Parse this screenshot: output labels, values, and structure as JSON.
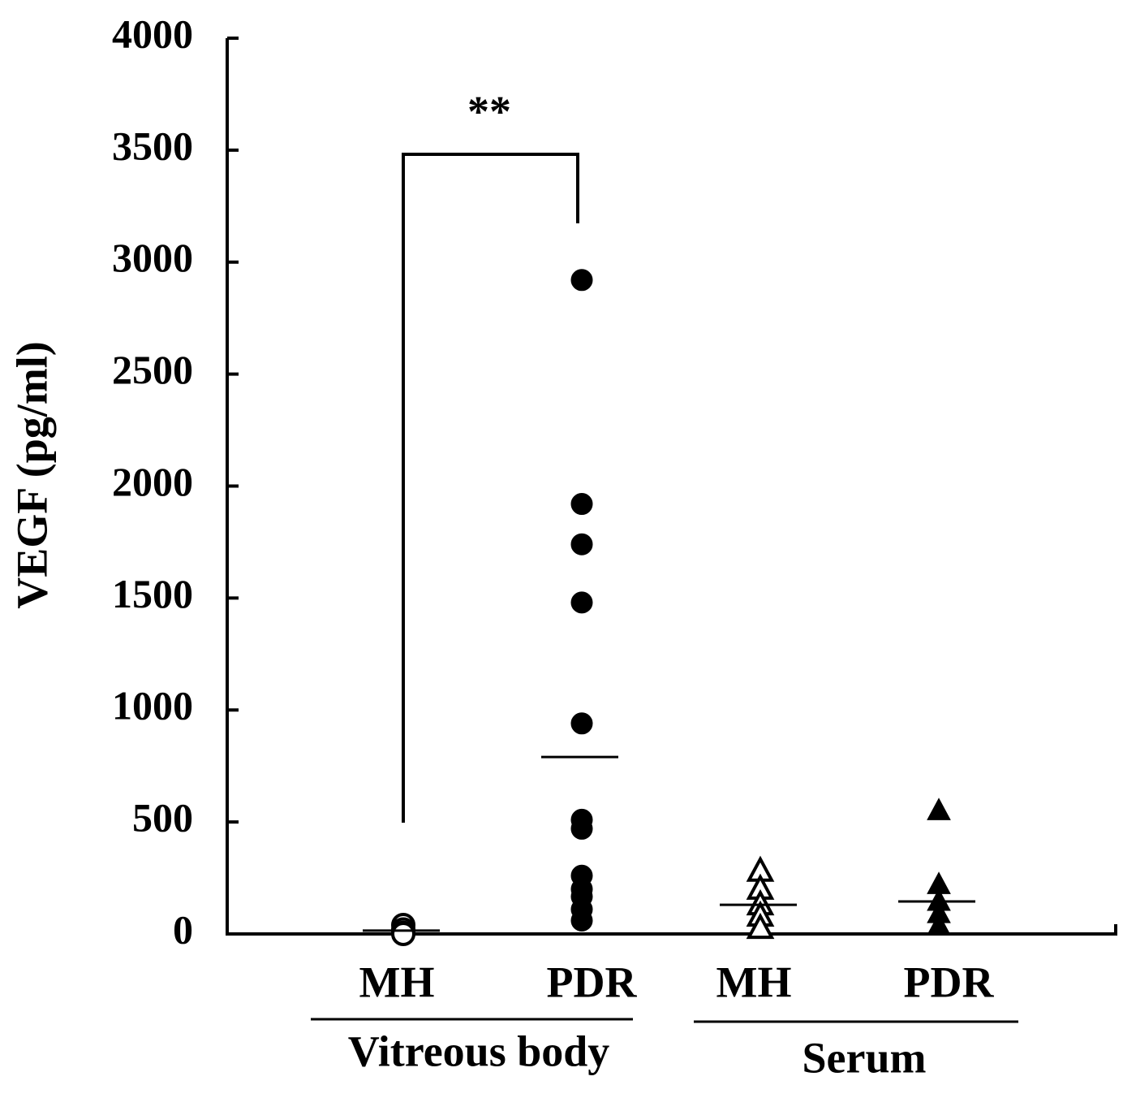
{
  "chart_data": {
    "type": "strip",
    "y_label": "VEGF (pg/ml)",
    "categories": [
      "MH",
      "PDR",
      "MH",
      "PDR"
    ],
    "group_labels": [
      "Vitreous body",
      "Serum"
    ],
    "values": [
      [
        40,
        20,
        5,
        0
      ],
      [
        2920,
        1920,
        1740,
        1480,
        940,
        510,
        470,
        260,
        200,
        167,
        110,
        60
      ],
      [
        280,
        200,
        130,
        80,
        25
      ],
      [
        550,
        220,
        145,
        90,
        36
      ]
    ],
    "means": [
      15,
      790,
      130,
      145
    ],
    "markers": [
      "open-circle",
      "filled-circle",
      "open-triangle",
      "filled-triangle"
    ],
    "color": "#000000",
    "annotation": "**",
    "ylim": [
      0,
      4000
    ],
    "yticks": [
      0,
      500,
      1000,
      1500,
      2000,
      2500,
      3000,
      3500,
      4000
    ]
  }
}
